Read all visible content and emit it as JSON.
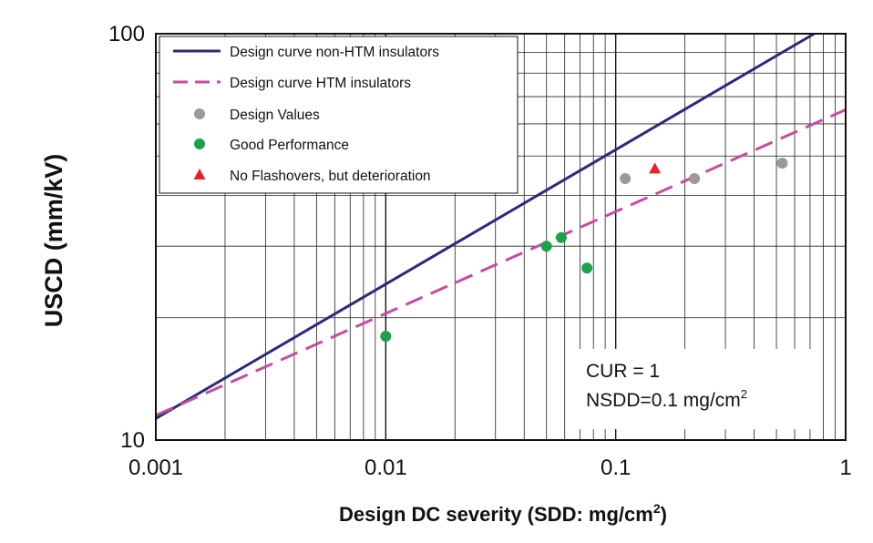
{
  "chart_data": {
    "type": "line",
    "x_scale": "log",
    "y_scale": "log",
    "xlim": [
      0.001,
      1
    ],
    "ylim": [
      10,
      100
    ],
    "grid": true,
    "legend_position": "top-left",
    "xlabel": "Design DC severity (SDD: mg/cm",
    "xlabel_sup": "2",
    "xlabel_end": ")",
    "ylabel": "USCD (mm/kV)",
    "x_ticks": [
      {
        "value": 0.001,
        "label": "0.001"
      },
      {
        "value": 0.01,
        "label": "0.01"
      },
      {
        "value": 0.1,
        "label": "0.1"
      },
      {
        "value": 1,
        "label": "1"
      }
    ],
    "y_ticks": [
      {
        "value": 10,
        "label": "10"
      },
      {
        "value": 100,
        "label": "100"
      }
    ],
    "series": [
      {
        "name": "Design curve non-HTM insulators",
        "kind": "line",
        "style": "solid",
        "color": "#2b2a7e",
        "points": [
          [
            0.001,
            11.3
          ],
          [
            0.73,
            100
          ]
        ]
      },
      {
        "name": "Design curve HTM insulators",
        "kind": "line",
        "style": "dashed",
        "color": "#c94aa3",
        "points": [
          [
            0.001,
            11.5
          ],
          [
            1,
            65
          ]
        ]
      },
      {
        "name": "Design Values",
        "kind": "scatter",
        "marker": "circle",
        "color": "#9a9a9a",
        "points": [
          [
            0.11,
            44
          ],
          [
            0.22,
            44
          ],
          [
            0.53,
            48
          ]
        ]
      },
      {
        "name": "Good Performance",
        "kind": "scatter",
        "marker": "circle",
        "color": "#1aa34a",
        "points": [
          [
            0.01,
            18
          ],
          [
            0.05,
            30
          ],
          [
            0.058,
            31.5
          ],
          [
            0.075,
            26.5
          ]
        ]
      },
      {
        "name": "No Flashovers, but deterioration",
        "kind": "scatter",
        "marker": "triangle",
        "color": "#e8202a",
        "points": [
          [
            0.148,
            46.5
          ]
        ]
      }
    ],
    "annotation": {
      "line1": "CUR = 1",
      "line2": "NSDD=0.1 mg/cm",
      "line2_sup": "2"
    }
  }
}
